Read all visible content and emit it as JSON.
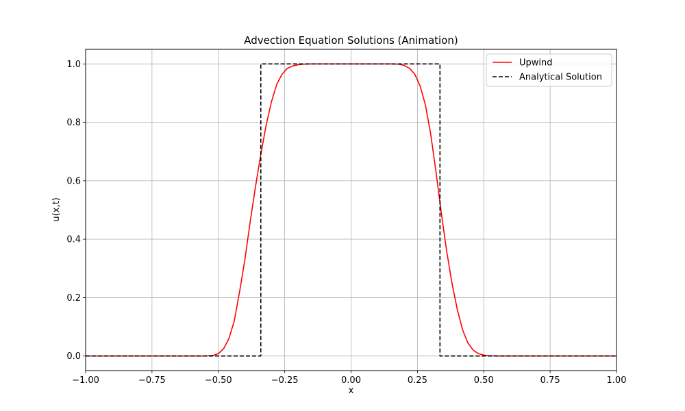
{
  "chart_data": {
    "type": "line",
    "title": "Advection Equation Solutions (Animation)",
    "xlabel": "x",
    "ylabel": "u(x,t)",
    "xlim": [
      -1.0,
      1.0
    ],
    "ylim": [
      -0.05,
      1.05
    ],
    "x_ticks": [
      -1.0,
      -0.75,
      -0.5,
      -0.25,
      0.0,
      0.25,
      0.5,
      0.75,
      1.0
    ],
    "x_tick_labels": [
      "−1.00",
      "−0.75",
      "−0.50",
      "−0.25",
      "0.00",
      "0.25",
      "0.50",
      "0.75",
      "1.00"
    ],
    "y_ticks": [
      0.0,
      0.2,
      0.4,
      0.6,
      0.8,
      1.0
    ],
    "y_tick_labels": [
      "0.0",
      "0.2",
      "0.4",
      "0.6",
      "0.8",
      "1.0"
    ],
    "grid": true,
    "legend_position": "top-right",
    "series": [
      {
        "name": "Upwind",
        "color": "#ff0000",
        "style": "solid",
        "x": [
          -1.0,
          -0.6,
          -0.55,
          -0.52,
          -0.5,
          -0.48,
          -0.46,
          -0.44,
          -0.42,
          -0.4,
          -0.38,
          -0.36,
          -0.34,
          -0.32,
          -0.3,
          -0.28,
          -0.26,
          -0.24,
          -0.22,
          -0.2,
          -0.18,
          -0.15,
          -0.1,
          0.0,
          0.1,
          0.15,
          0.18,
          0.2,
          0.22,
          0.24,
          0.26,
          0.28,
          0.3,
          0.32,
          0.34,
          0.36,
          0.38,
          0.4,
          0.42,
          0.44,
          0.46,
          0.48,
          0.5,
          0.52,
          0.55,
          0.6,
          1.0
        ],
        "y": [
          0.0,
          0.0,
          0.0,
          0.002,
          0.008,
          0.025,
          0.06,
          0.12,
          0.22,
          0.33,
          0.46,
          0.58,
          0.69,
          0.79,
          0.87,
          0.93,
          0.965,
          0.985,
          0.993,
          0.997,
          0.999,
          1.0,
          1.0,
          1.0,
          1.0,
          1.0,
          0.999,
          0.995,
          0.985,
          0.965,
          0.925,
          0.86,
          0.76,
          0.63,
          0.49,
          0.36,
          0.25,
          0.16,
          0.09,
          0.045,
          0.02,
          0.008,
          0.003,
          0.001,
          0.0,
          0.0,
          0.0
        ]
      },
      {
        "name": "Analytical Solution",
        "color": "#000000",
        "style": "dashed",
        "x": [
          -1.0,
          -0.34,
          -0.34,
          0.335,
          0.335,
          1.0
        ],
        "y": [
          0.0,
          0.0,
          1.0,
          1.0,
          0.0,
          0.0
        ]
      }
    ]
  }
}
